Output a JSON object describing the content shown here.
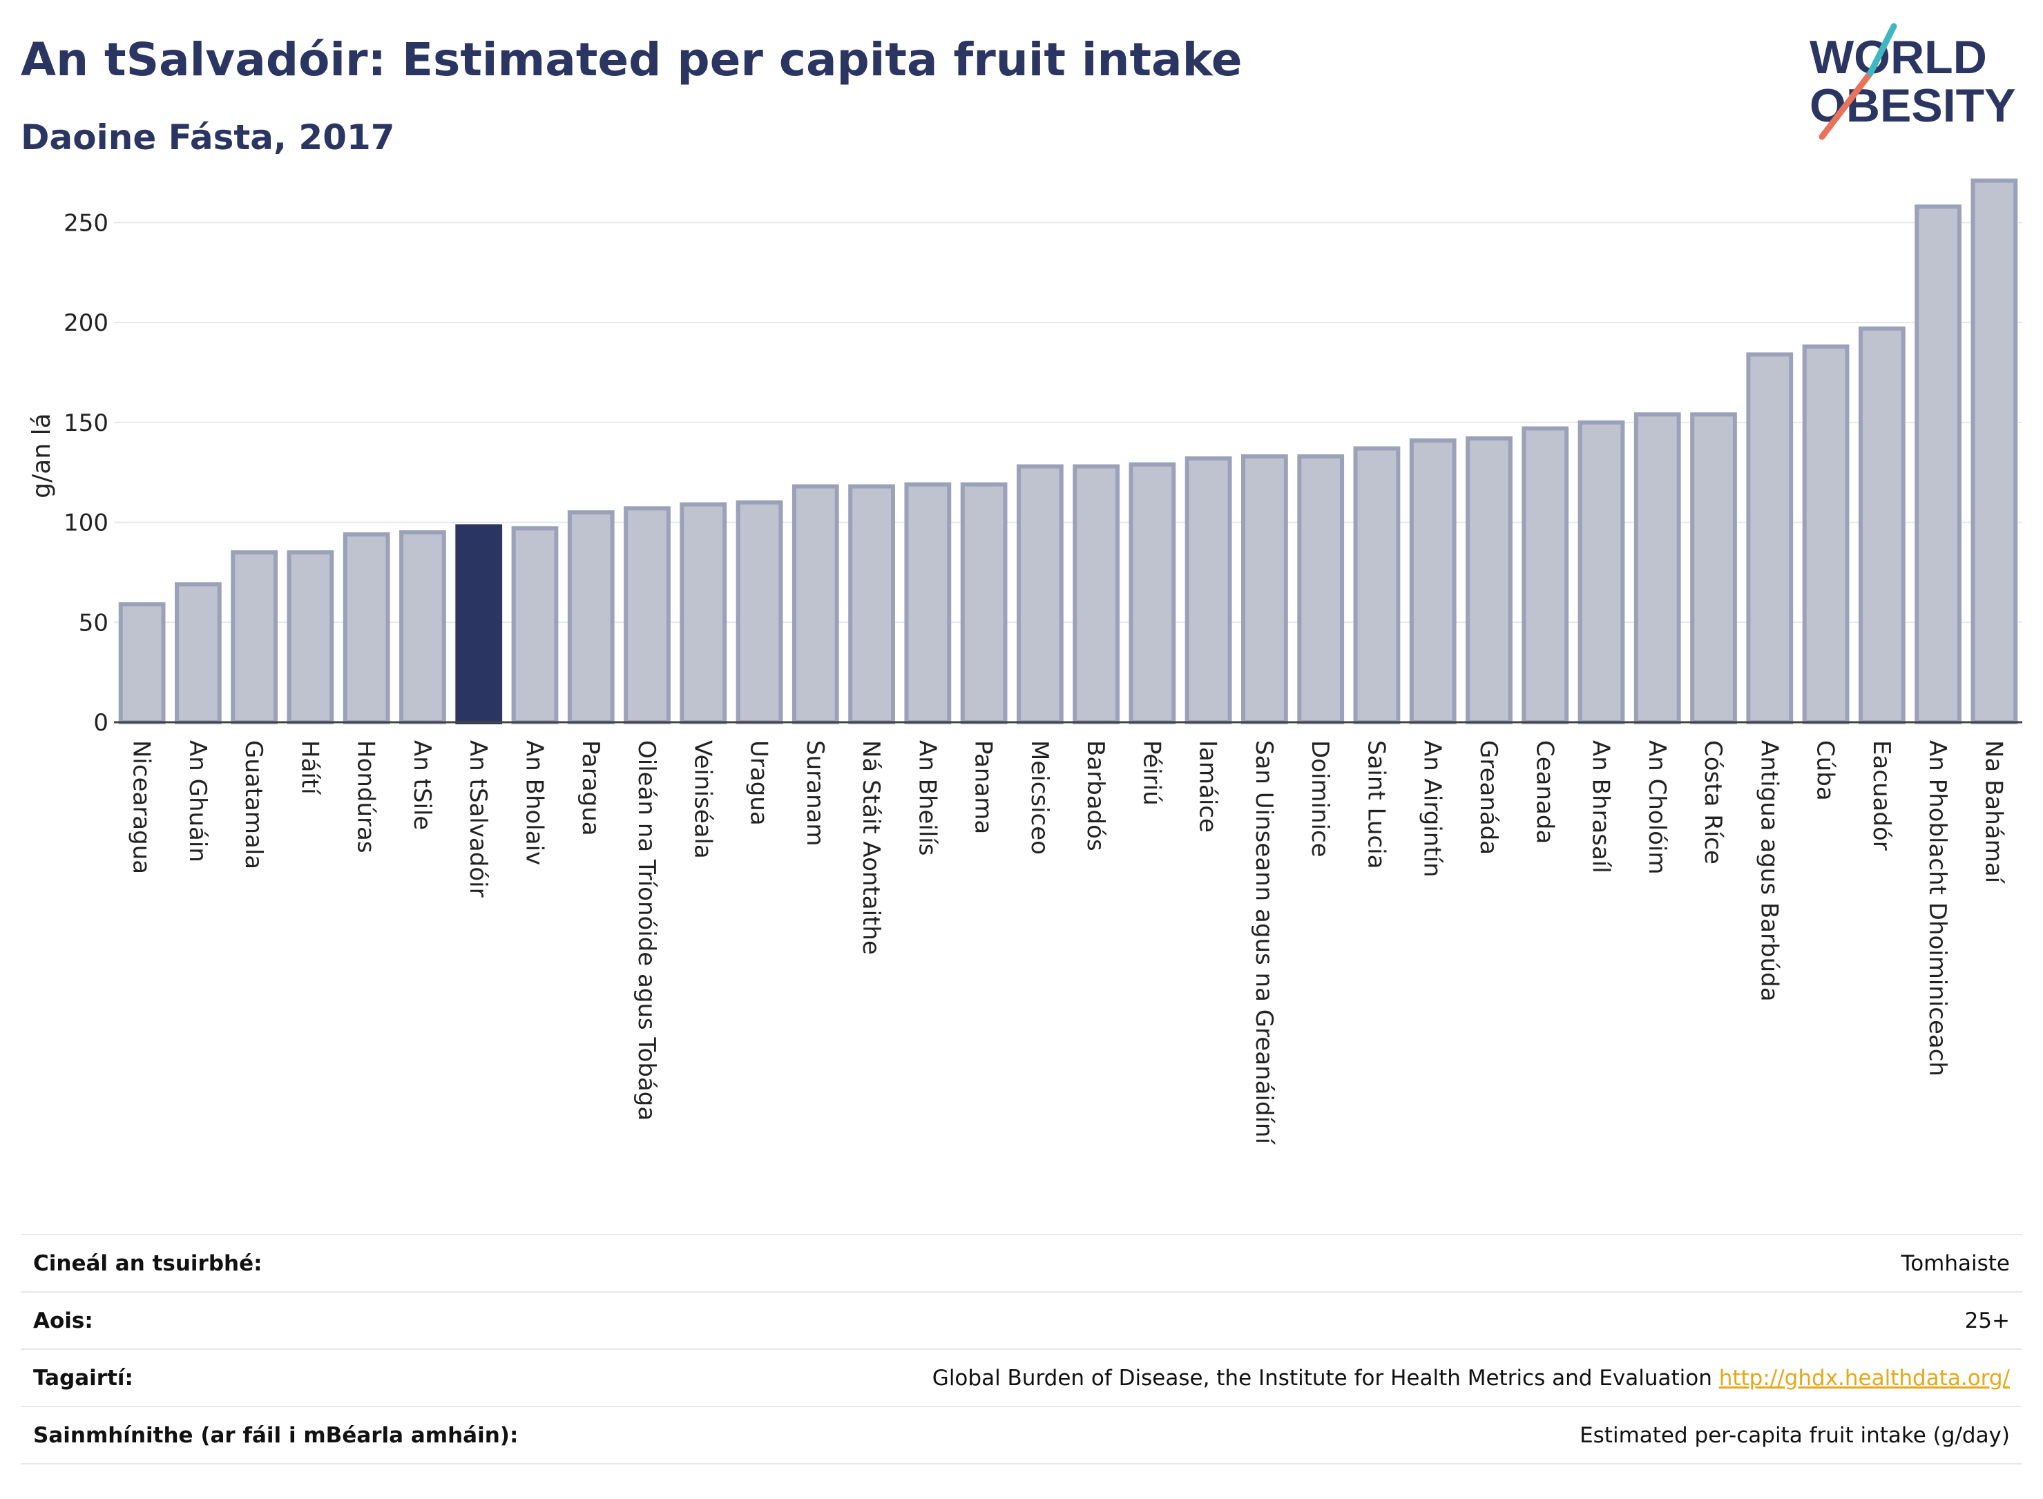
{
  "header": {
    "title": "An tSalvadóir: Estimated per capita fruit intake",
    "subtitle": "Daoine Fásta, 2017"
  },
  "logo": {
    "line1": "WORLD",
    "line2": "OBESITY",
    "text_color": "#2b3561",
    "slash_colors": [
      "#e8735a",
      "#3fb7c2"
    ]
  },
  "colors": {
    "bar": "#bfc3d0",
    "bar_border": "#9aa1b8",
    "highlight": "#2b3561",
    "grid": "#e6e8ee",
    "link": "#e6a817"
  },
  "chart_data": {
    "type": "bar",
    "ylabel": "g/an lá",
    "ylim": [
      0,
      275
    ],
    "yticks": [
      0,
      50,
      100,
      150,
      200,
      250
    ],
    "grid": true,
    "highlight": "An tSalvadóir",
    "categories": [
      "Nicearagua",
      "An Ghuáin",
      "Guatamala",
      "Háítí",
      "Hondúras",
      "An tSile",
      "An tSalvadóir",
      "An Bholaiv",
      "Paragua",
      "Oileán na Tríonóide agus Tobága",
      "Veiniséala",
      "Uragua",
      "Suranam",
      "Ná Stáit Aontaithe",
      "An Bheilís",
      "Panama",
      "Meicsiceo",
      "Barbadós",
      "Péiriú",
      "Iamáice",
      "San Uinseann agus na Greanáidíní",
      "Doiminice",
      "Saint Lucia",
      "An Airgintín",
      "Greanáda",
      "Ceanada",
      "An Bhrasaíl",
      "An Cholóim",
      "Cósta Ríce",
      "Antigua agus Barbúda",
      "Cúba",
      "Eacuadór",
      "An Phoblacht Dhoiminiceach",
      "Na Bahámaí"
    ],
    "values": [
      59,
      69,
      85,
      85,
      94,
      95,
      98,
      97,
      105,
      107,
      109,
      110,
      118,
      118,
      119,
      119,
      128,
      128,
      129,
      132,
      133,
      133,
      137,
      141,
      142,
      147,
      150,
      154,
      154,
      184,
      188,
      197,
      258,
      271
    ]
  },
  "info": [
    {
      "label": "Cineál an tsuirbhé:",
      "value": "Tomhaiste"
    },
    {
      "label": "Aois:",
      "value": "25+"
    },
    {
      "label": "Tagairtí:",
      "value": "Global Burden of Disease, the Institute for Health Metrics and Evaluation",
      "link": "http://ghdx.healthdata.org/"
    },
    {
      "label": "Sainmhínithe (ar fáil i mBéarla amháin):",
      "value": "Estimated per-capita fruit intake (g/day)"
    }
  ]
}
